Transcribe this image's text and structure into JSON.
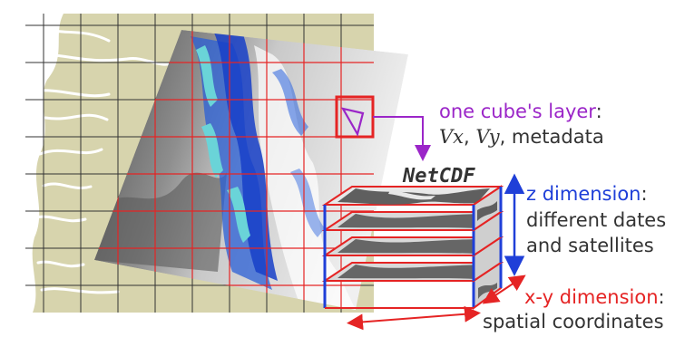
{
  "labels": {
    "cube_layer": "one cube's layer",
    "cube_layer_colon": ":",
    "var_vx": "Vx",
    "var_sep1": ", ",
    "var_vy": "Vy",
    "var_sep2": ", metadata",
    "netcdf": "NetCDF",
    "z_dimension": "z dimension",
    "z_colon": ":",
    "z_desc_1": "different dates",
    "z_desc_2": "and satellites",
    "xy_dimension": "x-y dimension",
    "xy_colon": ":",
    "xy_desc": "spatial coordinates"
  },
  "colors": {
    "map_land": "#d7d4ad",
    "grid_black": "#333333",
    "grid_red": "#e52424",
    "highlight": "#9b26c8",
    "z_arrow": "#1f3fd8",
    "xy_arrow": "#e52424",
    "cube_blue": "#1f3fd8"
  }
}
